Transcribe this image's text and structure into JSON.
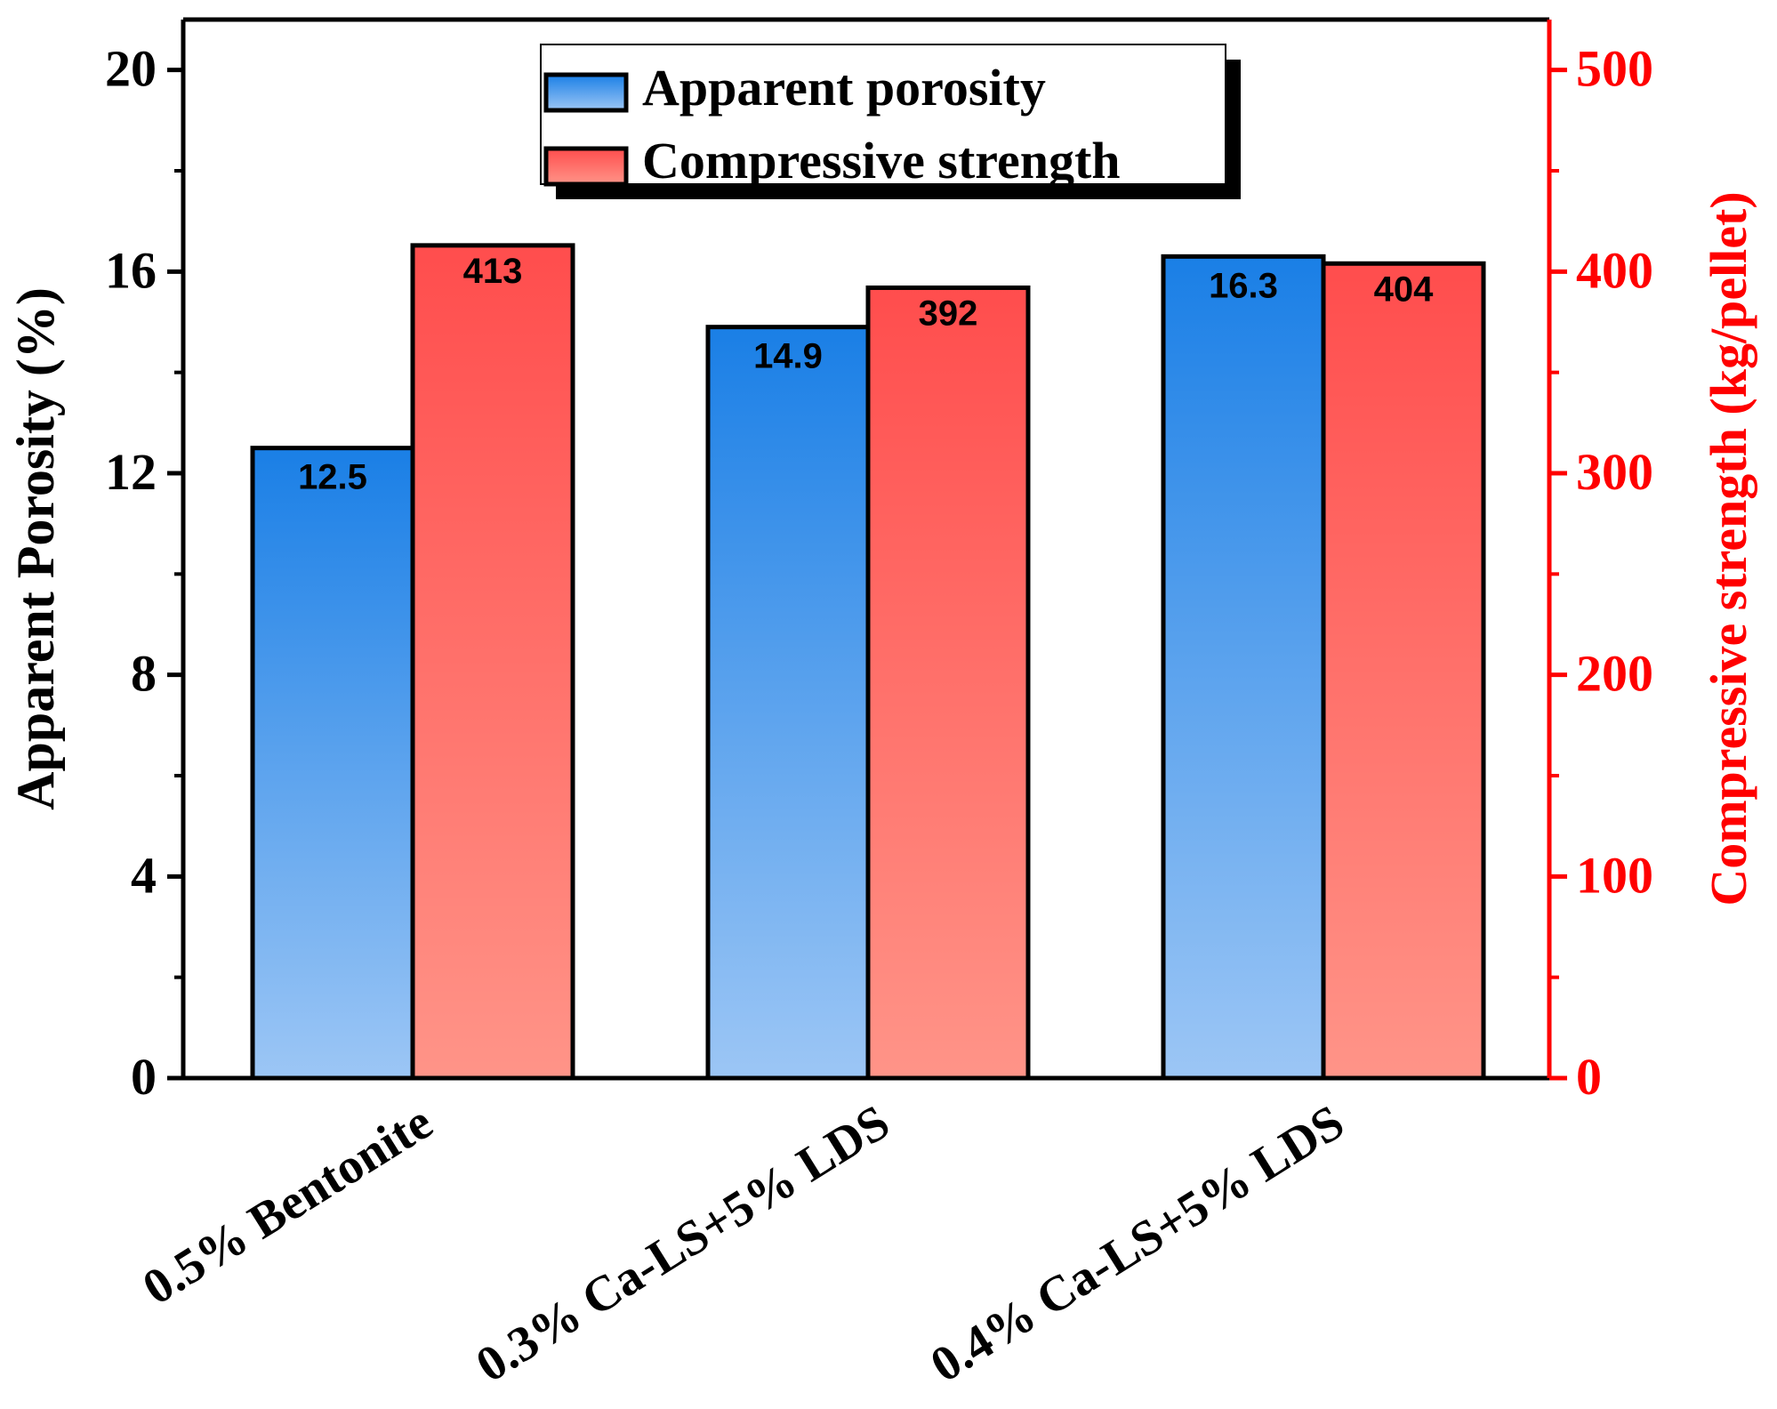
{
  "chart_data": {
    "type": "bar",
    "categories": [
      "0.5% Bentonite",
      "0.3% Ca-LS+5% LDS",
      "0.4% Ca-LS+5% LDS"
    ],
    "series": [
      {
        "name": "Apparent porosity",
        "axis": "left",
        "values": [
          12.5,
          14.9,
          16.3
        ],
        "labels": [
          "12.5",
          "14.9",
          "16.3"
        ],
        "color_top": "#1a7fe6",
        "color_bottom": "#9cc6f5"
      },
      {
        "name": "Compressive strength",
        "axis": "right",
        "values": [
          413,
          392,
          404
        ],
        "labels": [
          "413",
          "392",
          "404"
        ],
        "color_top": "#ff4d4d",
        "color_bottom": "#ff9488"
      }
    ],
    "ylabel_left": "Apparent Porosity (%)",
    "ylabel_right": "Compressive strength (kg/pellet)",
    "ylim_left": [
      0,
      21
    ],
    "ylim_right": [
      0,
      525
    ],
    "yticks_left": [
      "0",
      "4",
      "8",
      "12",
      "16",
      "20"
    ],
    "yticks_right": [
      "0",
      "100",
      "200",
      "300",
      "400",
      "500"
    ],
    "right_axis_color": "#ff0000",
    "legend_position": "top-center",
    "grid": false
  }
}
